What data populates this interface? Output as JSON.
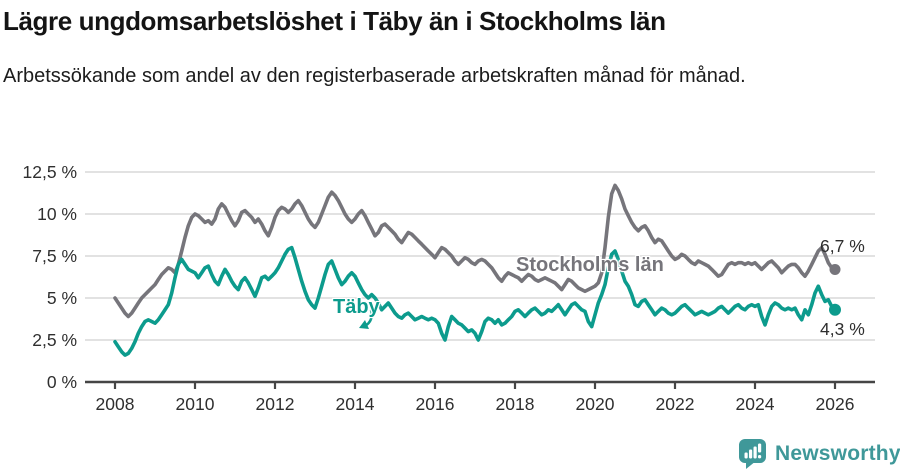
{
  "header": {
    "title": "Lägre ungdomsarbetslöshet i Täby än i Stockholms län",
    "subtitle": "Arbetssökande som andel av den registerbaserade arbetskraften månad för månad."
  },
  "colors": {
    "grid": "#d9d9d9",
    "axis": "#454545",
    "tick_text": "#2f2f2f",
    "end_label_text": "#2e2e2e"
  },
  "chart_data": {
    "type": "line",
    "title": "Lägre ungdomsarbetslöshet i Täby än i Stockholms län",
    "subtitle": "Arbetssökande som andel av den registerbaserade arbetskraften månad för månad.",
    "x_unit": "decimal_year_monthly",
    "x_start": 2008.0,
    "x_step": 0.0833,
    "xlim": [
      2007.3,
      2027.0
    ],
    "ylim": [
      0,
      13.1
    ],
    "grid": "horizontal",
    "legend_position": "inline-labels",
    "y_ticks": [
      0,
      2.5,
      5,
      7.5,
      10,
      12.5
    ],
    "y_tick_labels": [
      "0 %",
      "2,5 %",
      "5 %",
      "7,5 %",
      "10 %",
      "12,5 %"
    ],
    "x_ticks": [
      2008,
      2010,
      2012,
      2014,
      2016,
      2018,
      2020,
      2022,
      2024,
      2026
    ],
    "x_tick_labels": [
      "2008",
      "2010",
      "2012",
      "2014",
      "2016",
      "2018",
      "2020",
      "2022",
      "2024",
      "2026"
    ],
    "series": [
      {
        "name": "Stockholms län",
        "color": "#76757B",
        "end_label": "6,7 %",
        "end_value": 6.7,
        "values": [
          5.0,
          4.7,
          4.4,
          4.1,
          3.9,
          4.1,
          4.4,
          4.7,
          5.0,
          5.2,
          5.4,
          5.6,
          5.8,
          6.1,
          6.4,
          6.6,
          6.8,
          6.7,
          6.5,
          7.0,
          7.8,
          8.6,
          9.3,
          9.8,
          10.0,
          9.9,
          9.7,
          9.5,
          9.6,
          9.4,
          9.7,
          10.3,
          10.6,
          10.4,
          10.0,
          9.6,
          9.3,
          9.6,
          10.1,
          10.2,
          10.0,
          9.8,
          9.5,
          9.7,
          9.4,
          9.0,
          8.7,
          9.2,
          9.8,
          10.2,
          10.4,
          10.3,
          10.1,
          10.3,
          10.6,
          10.8,
          10.5,
          10.1,
          9.7,
          9.4,
          9.2,
          9.5,
          10.0,
          10.5,
          11.0,
          11.3,
          11.1,
          10.8,
          10.4,
          10.0,
          9.7,
          9.5,
          9.7,
          10.0,
          10.2,
          9.9,
          9.5,
          9.1,
          8.7,
          8.9,
          9.3,
          9.4,
          9.2,
          9.0,
          8.8,
          8.5,
          8.3,
          8.6,
          8.9,
          8.8,
          8.6,
          8.4,
          8.2,
          8.0,
          7.8,
          7.6,
          7.4,
          7.7,
          8.0,
          7.9,
          7.7,
          7.5,
          7.2,
          7.0,
          7.2,
          7.4,
          7.3,
          7.1,
          7.0,
          7.2,
          7.3,
          7.2,
          7.0,
          6.8,
          6.5,
          6.2,
          6.0,
          6.3,
          6.5,
          6.4,
          6.3,
          6.2,
          6.0,
          6.2,
          6.4,
          6.3,
          6.1,
          6.0,
          6.1,
          6.2,
          6.1,
          6.0,
          5.9,
          5.7,
          5.5,
          5.8,
          6.1,
          6.0,
          5.8,
          5.6,
          5.5,
          5.4,
          5.5,
          5.6,
          5.7,
          5.9,
          6.5,
          8.0,
          9.8,
          11.2,
          11.7,
          11.4,
          10.9,
          10.3,
          9.9,
          9.5,
          9.2,
          9.0,
          9.2,
          9.3,
          9.0,
          8.6,
          8.3,
          8.5,
          8.4,
          8.1,
          7.8,
          7.5,
          7.3,
          7.4,
          7.6,
          7.5,
          7.3,
          7.1,
          7.0,
          7.2,
          7.1,
          7.0,
          6.9,
          6.7,
          6.5,
          6.3,
          6.4,
          6.7,
          7.0,
          7.1,
          7.0,
          7.1,
          7.1,
          7.0,
          7.1,
          7.0,
          7.1,
          6.9,
          6.7,
          6.9,
          7.1,
          7.2,
          7.0,
          6.8,
          6.5,
          6.7,
          6.9,
          7.0,
          7.0,
          6.8,
          6.5,
          6.3,
          6.6,
          7.0,
          7.4,
          7.8,
          8.0,
          7.6,
          7.1,
          6.8,
          6.7
        ]
      },
      {
        "name": "Täby",
        "color": "#0C9B8D",
        "end_label": "4,3 %",
        "end_value": 4.3,
        "values": [
          2.4,
          2.1,
          1.8,
          1.6,
          1.7,
          2.0,
          2.4,
          2.9,
          3.3,
          3.6,
          3.7,
          3.6,
          3.5,
          3.7,
          4.0,
          4.3,
          4.6,
          5.3,
          6.2,
          7.0,
          7.3,
          7.0,
          6.7,
          6.6,
          6.5,
          6.2,
          6.5,
          6.8,
          6.9,
          6.4,
          6.0,
          5.8,
          6.3,
          6.7,
          6.4,
          6.0,
          5.7,
          5.5,
          6.0,
          6.2,
          5.9,
          5.5,
          5.1,
          5.6,
          6.2,
          6.3,
          6.1,
          6.3,
          6.5,
          6.8,
          7.2,
          7.6,
          7.9,
          8.0,
          7.4,
          6.7,
          6.0,
          5.4,
          4.9,
          4.6,
          4.4,
          5.0,
          5.7,
          6.4,
          7.0,
          7.2,
          6.7,
          6.2,
          5.8,
          6.0,
          6.3,
          6.5,
          6.3,
          5.9,
          5.5,
          5.2,
          5.0,
          5.2,
          5.0,
          4.7,
          4.3,
          4.5,
          4.7,
          4.4,
          4.1,
          3.9,
          3.8,
          4.0,
          4.1,
          3.9,
          3.7,
          3.8,
          3.9,
          3.8,
          3.7,
          3.8,
          3.7,
          3.5,
          2.9,
          2.5,
          3.3,
          3.9,
          3.7,
          3.5,
          3.4,
          3.2,
          3.0,
          3.1,
          2.9,
          2.5,
          3.0,
          3.6,
          3.8,
          3.7,
          3.5,
          3.7,
          3.4,
          3.5,
          3.7,
          3.9,
          4.2,
          4.3,
          4.1,
          3.9,
          4.1,
          4.3,
          4.4,
          4.2,
          4.0,
          4.1,
          4.3,
          4.2,
          4.4,
          4.6,
          4.3,
          4.0,
          4.3,
          4.6,
          4.7,
          4.5,
          4.3,
          4.2,
          3.6,
          3.3,
          4.0,
          4.7,
          5.2,
          5.8,
          6.8,
          7.6,
          7.8,
          7.3,
          6.6,
          6.0,
          5.7,
          5.2,
          4.6,
          4.5,
          4.8,
          4.9,
          4.6,
          4.3,
          4.0,
          4.2,
          4.4,
          4.3,
          4.1,
          4.0,
          4.1,
          4.3,
          4.5,
          4.6,
          4.4,
          4.2,
          4.0,
          4.1,
          4.2,
          4.1,
          4.0,
          4.1,
          4.2,
          4.4,
          4.5,
          4.3,
          4.1,
          4.3,
          4.5,
          4.6,
          4.4,
          4.3,
          4.5,
          4.6,
          4.5,
          4.6,
          3.9,
          3.4,
          4.0,
          4.5,
          4.7,
          4.6,
          4.4,
          4.3,
          4.4,
          4.3,
          4.4,
          4.0,
          3.7,
          4.3,
          4.0,
          4.6,
          5.3,
          5.7,
          5.2,
          4.8,
          4.9,
          4.5,
          4.3
        ]
      }
    ]
  },
  "footer": {
    "brand": "Newsworthy",
    "brand_color": "#3F9899"
  }
}
